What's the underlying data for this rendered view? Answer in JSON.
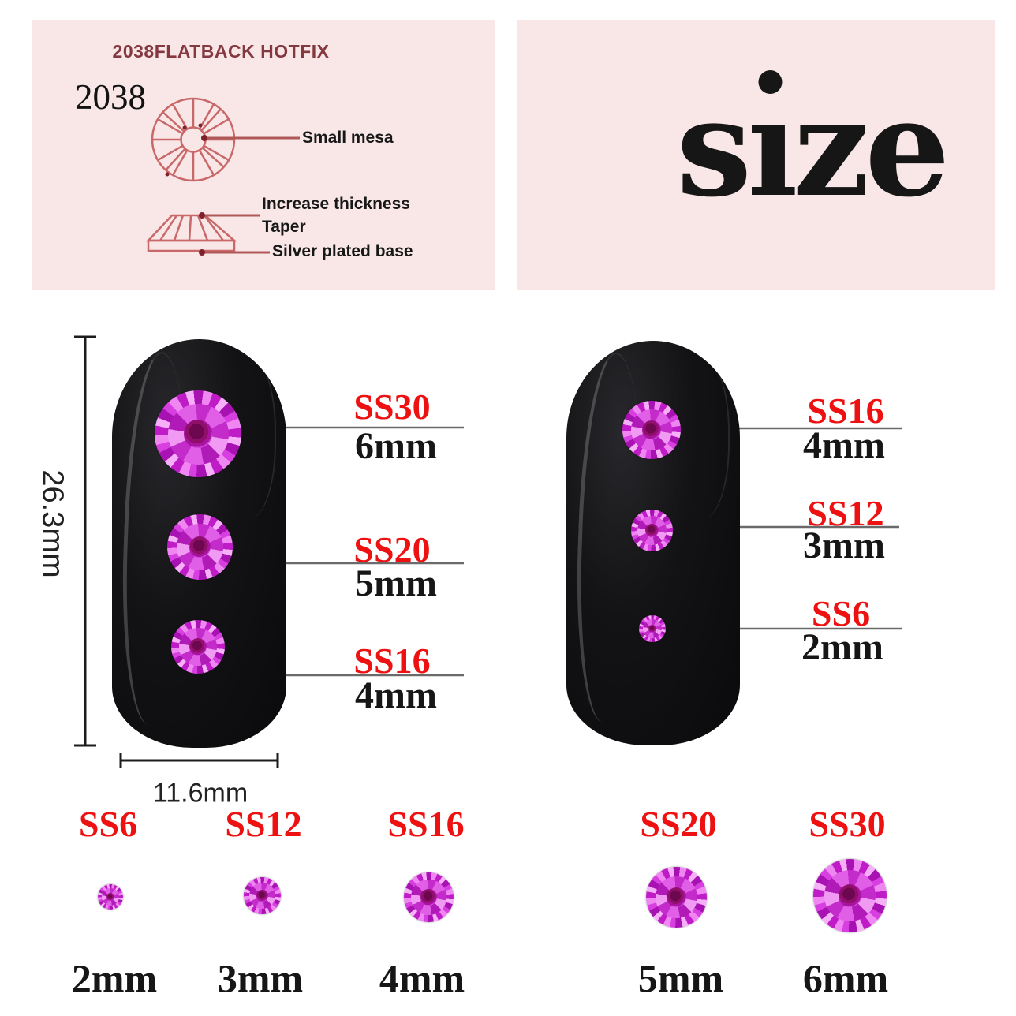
{
  "colors": {
    "panel_pink": "#f9e7e8",
    "accent_red": "#ee1111",
    "diagram_stroke": "#c96868",
    "diagram_leader": "#b05858",
    "title_maroon": "#84383f",
    "text_black": "#161616",
    "callout_line_gray": "#6a6a6a",
    "gem_magenta": "#c32bc9",
    "gem_center_dark": "#6d0850",
    "nail_black": "#0c0c0e"
  },
  "spec_panel": {
    "title": "2038FLATBACK HOTFIX",
    "model": "2038",
    "labels": {
      "top_view": "Small mesa",
      "thickness": "Increase thickness",
      "taper": "Taper",
      "base": "Silver plated base"
    }
  },
  "size_panel": {
    "word": "size",
    "display": {
      "s": "s",
      "i_stem": "ı",
      "ze": "ze"
    }
  },
  "measurements": {
    "nail_height": "26.3mm",
    "nail_width": "11.6mm"
  },
  "left_nail_callouts": [
    {
      "ss": "SS30",
      "mm": "6mm"
    },
    {
      "ss": "SS20",
      "mm": "5mm"
    },
    {
      "ss": "SS16",
      "mm": "4mm"
    }
  ],
  "right_nail_callouts": [
    {
      "ss": "SS16",
      "mm": "4mm"
    },
    {
      "ss": "SS12",
      "mm": "3mm"
    },
    {
      "ss": "SS6",
      "mm": "2mm"
    }
  ],
  "size_row": [
    {
      "ss": "SS6",
      "mm": "2mm"
    },
    {
      "ss": "SS12",
      "mm": "3mm"
    },
    {
      "ss": "SS16",
      "mm": "4mm"
    },
    {
      "ss": "SS20",
      "mm": "5mm"
    },
    {
      "ss": "SS30",
      "mm": "6mm"
    }
  ]
}
